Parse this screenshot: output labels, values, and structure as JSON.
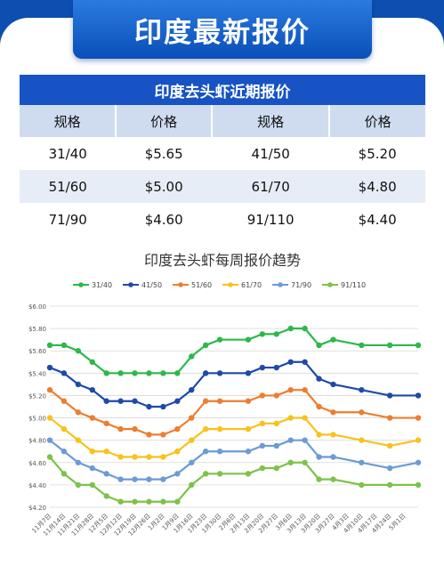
{
  "header": {
    "title": "印度最新报价"
  },
  "table": {
    "title": "印度去头虾近期报价",
    "headers": [
      "规格",
      "价格",
      "规格",
      "价格"
    ],
    "rows": [
      [
        "31/40",
        "$5.65",
        "41/50",
        "$5.20"
      ],
      [
        "51/60",
        "$5.00",
        "61/70",
        "$4.80"
      ],
      [
        "71/90",
        "$4.60",
        "91/110",
        "$4.40"
      ]
    ]
  },
  "chart_data": {
    "type": "line",
    "title": "印度去头虾每周报价趋势",
    "xlabel": "",
    "ylabel": "",
    "ylim": [
      4.2,
      6.0
    ],
    "yticks": [
      "$4.20",
      "$4.40",
      "$4.60",
      "$4.80",
      "$5.00",
      "$5.20",
      "$5.40",
      "$5.60",
      "$5.80",
      "$6.00"
    ],
    "grid": true,
    "legend_position": "top",
    "x": [
      "11月7日",
      "11月14日",
      "11月21日",
      "11月28日",
      "12月5日",
      "12月12日",
      "12月19日",
      "12月26日",
      "1月2日",
      "1月9日",
      "1月16日",
      "1月23日",
      "1月30日",
      "2月6日",
      "2月13日",
      "2月20日",
      "2月27日",
      "3月6日",
      "3月13日",
      "3月20日",
      "3月27日",
      "4月3日",
      "4月10日",
      "4月17日",
      "4月24日",
      "5月1日"
    ],
    "x_positions": [
      0,
      1,
      2,
      3,
      4,
      5,
      6,
      7,
      8,
      9,
      10,
      11,
      12,
      13,
      14,
      15,
      16,
      17,
      18,
      19,
      20,
      21,
      22,
      23,
      24,
      25
    ],
    "series": [
      {
        "name": "31/40",
        "color": "#2db84a",
        "x": [
          0,
          1,
          2,
          3,
          4,
          5,
          6,
          7,
          8,
          9,
          10,
          11,
          12,
          14,
          15,
          16,
          17,
          18,
          19,
          20,
          22,
          24,
          26
        ],
        "values": [
          5.65,
          5.65,
          5.6,
          5.5,
          5.4,
          5.4,
          5.4,
          5.4,
          5.4,
          5.4,
          5.55,
          5.65,
          5.7,
          5.7,
          5.75,
          5.75,
          5.8,
          5.8,
          5.65,
          5.7,
          5.65,
          5.65,
          5.65
        ]
      },
      {
        "name": "41/50",
        "color": "#1f4aa8",
        "x": [
          0,
          1,
          2,
          3,
          4,
          5,
          6,
          7,
          8,
          9,
          10,
          11,
          12,
          14,
          15,
          16,
          17,
          18,
          19,
          20,
          22,
          24,
          26
        ],
        "values": [
          5.45,
          5.4,
          5.3,
          5.25,
          5.15,
          5.15,
          5.15,
          5.1,
          5.1,
          5.15,
          5.25,
          5.4,
          5.4,
          5.4,
          5.45,
          5.45,
          5.5,
          5.5,
          5.35,
          5.3,
          5.25,
          5.2,
          5.2
        ]
      },
      {
        "name": "51/60",
        "color": "#ee7d2f",
        "x": [
          0,
          1,
          2,
          3,
          4,
          5,
          6,
          7,
          8,
          9,
          10,
          11,
          12,
          14,
          15,
          16,
          17,
          18,
          19,
          20,
          22,
          24,
          26
        ],
        "values": [
          5.25,
          5.15,
          5.05,
          5.0,
          4.95,
          4.9,
          4.9,
          4.85,
          4.85,
          4.9,
          5.0,
          5.15,
          5.15,
          5.15,
          5.2,
          5.2,
          5.25,
          5.25,
          5.1,
          5.05,
          5.05,
          5.0,
          5.0
        ]
      },
      {
        "name": "61/70",
        "color": "#f7c21b",
        "x": [
          0,
          1,
          2,
          3,
          4,
          5,
          6,
          7,
          8,
          9,
          10,
          11,
          12,
          14,
          15,
          16,
          17,
          18,
          19,
          20,
          22,
          24,
          26
        ],
        "values": [
          5.0,
          4.9,
          4.8,
          4.7,
          4.7,
          4.65,
          4.65,
          4.65,
          4.65,
          4.7,
          4.8,
          4.9,
          4.9,
          4.9,
          4.95,
          4.95,
          5.0,
          5.0,
          4.85,
          4.85,
          4.8,
          4.75,
          4.8
        ]
      },
      {
        "name": "71/90",
        "color": "#6c9bd6",
        "x": [
          0,
          1,
          2,
          3,
          4,
          5,
          6,
          7,
          8,
          9,
          10,
          11,
          12,
          14,
          15,
          16,
          17,
          18,
          19,
          20,
          22,
          24,
          26
        ],
        "values": [
          4.8,
          4.7,
          4.6,
          4.55,
          4.5,
          4.45,
          4.45,
          4.45,
          4.45,
          4.5,
          4.6,
          4.7,
          4.7,
          4.7,
          4.75,
          4.75,
          4.8,
          4.8,
          4.65,
          4.65,
          4.6,
          4.55,
          4.6
        ]
      },
      {
        "name": "91/110",
        "color": "#7dc24a",
        "x": [
          0,
          1,
          2,
          3,
          4,
          5,
          6,
          7,
          8,
          9,
          10,
          11,
          12,
          14,
          15,
          16,
          17,
          18,
          19,
          20,
          22,
          24,
          26
        ],
        "values": [
          4.65,
          4.5,
          4.4,
          4.4,
          4.3,
          4.25,
          4.25,
          4.25,
          4.25,
          4.25,
          4.4,
          4.5,
          4.5,
          4.5,
          4.55,
          4.55,
          4.6,
          4.6,
          4.45,
          4.45,
          4.4,
          4.4,
          4.4
        ]
      }
    ]
  }
}
